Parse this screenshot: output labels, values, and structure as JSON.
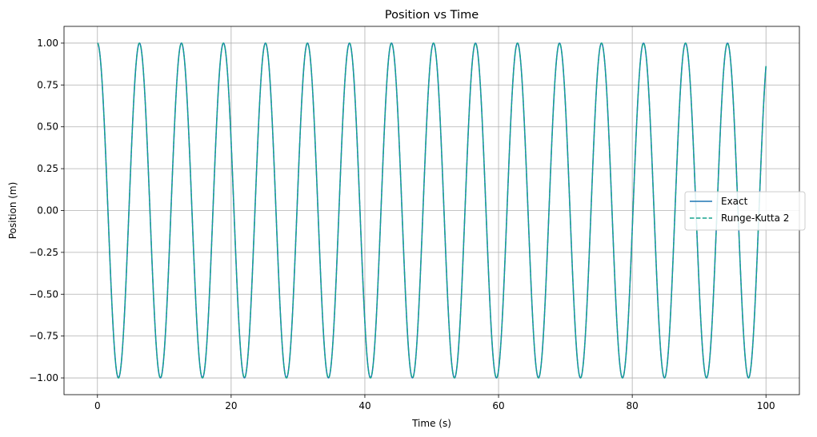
{
  "chart_data": {
    "type": "line",
    "title": "Position vs Time",
    "xlabel": "Time (s)",
    "ylabel": "Position (m)",
    "xlim": [
      -5,
      105
    ],
    "ylim": [
      -1.1,
      1.1
    ],
    "xticks": [
      0,
      20,
      40,
      60,
      80,
      100
    ],
    "xtick_labels": [
      "0",
      "20",
      "40",
      "60",
      "80",
      "100"
    ],
    "yticks": [
      1.0,
      0.75,
      0.5,
      0.25,
      0.0,
      -0.25,
      -0.5,
      -0.75,
      -1.0
    ],
    "ytick_labels": [
      "1.00",
      "0.75",
      "0.50",
      "0.25",
      "0.00",
      "−0.25",
      "−0.50",
      "−0.75",
      "−1.00"
    ],
    "grid": true,
    "legend_position": "center-right",
    "x_range": [
      0,
      100
    ],
    "function": "cos(t)",
    "series": [
      {
        "name": "Exact",
        "color": "#1f77b4",
        "style": "solid"
      },
      {
        "name": "Runge-Kutta 2",
        "color": "#17a38e",
        "style": "dashed"
      }
    ]
  }
}
